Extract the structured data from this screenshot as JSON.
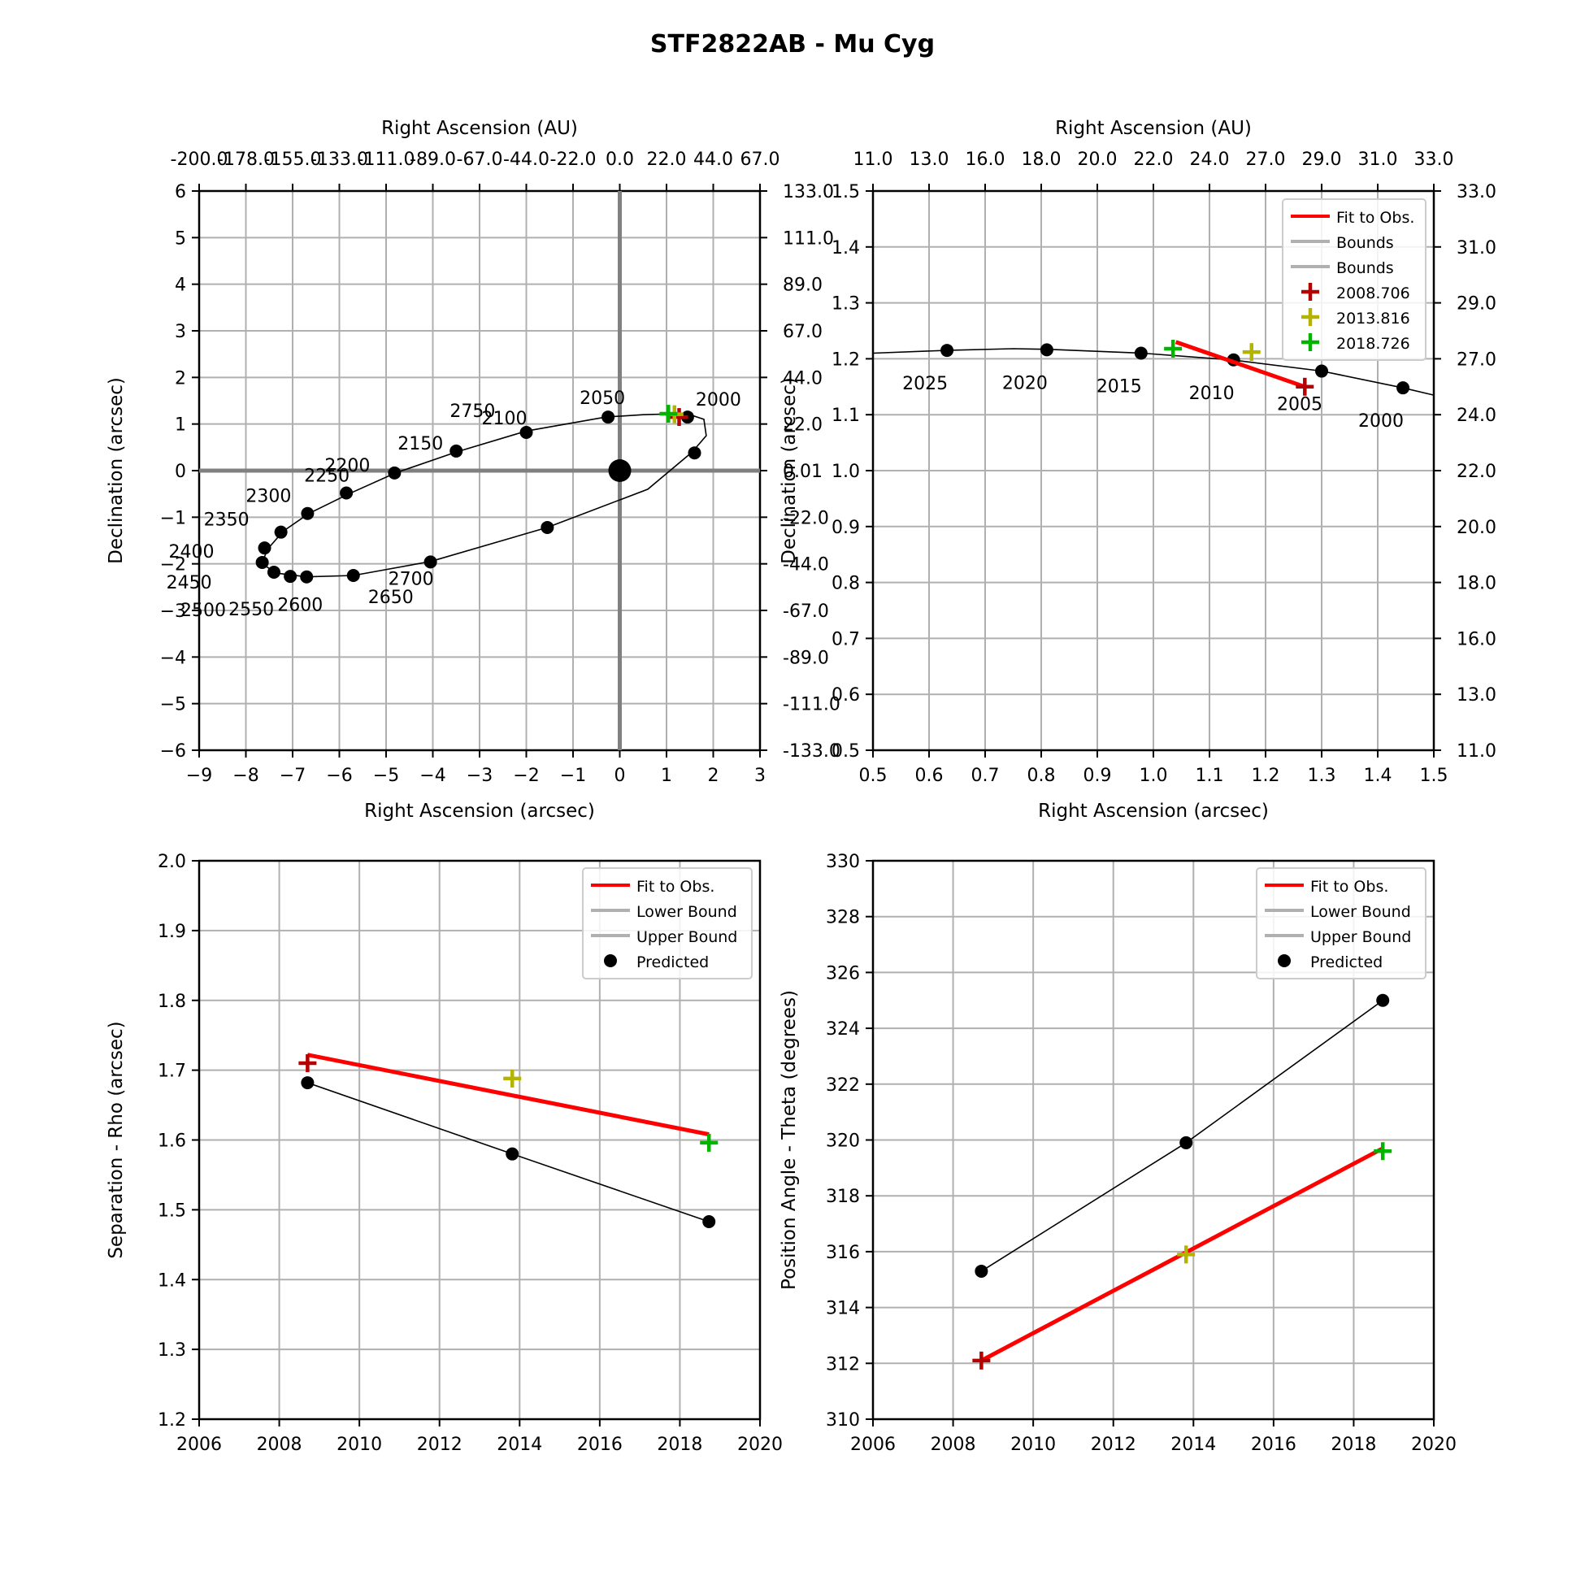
{
  "figure": {
    "title": "STF2822AB - Mu Cyg"
  },
  "colors": {
    "fit": "#ff0000",
    "bound": "#b0b0b0",
    "obs1": "#b40000",
    "obs2": "#b4b400",
    "obs3": "#00b400",
    "predicted": "#000000"
  },
  "chart_data": [
    {
      "id": "orbit-full",
      "type": "scatter",
      "xlabel": "Right Ascension (arcsec)",
      "ylabel": "Declination (arcsec)",
      "top_xlabel": "Right Ascension (AU)",
      "xlim": [
        -9,
        3
      ],
      "ylim": [
        -6,
        6
      ],
      "xticks": [
        "−9",
        "−8",
        "−7",
        "−6",
        "−5",
        "−4",
        "−3",
        "−2",
        "−1",
        "0",
        "1",
        "2",
        "3"
      ],
      "yticks": [
        "−6",
        "−5",
        "−4",
        "−3",
        "−2",
        "−1",
        "0",
        "1",
        "2",
        "3",
        "4",
        "5",
        "6"
      ],
      "top_ticks": [
        "-200.0",
        "-178.0",
        "-155.0",
        "-133.0",
        "-111.0",
        "-89.0",
        "-67.0",
        "-44.0",
        "-22.0",
        "0.0",
        "22.0",
        "44.0",
        "67.0"
      ],
      "right_ticks": [
        "-133.0",
        "-111.0",
        "-89.0",
        "-67.0",
        "-44.0",
        "-22.0",
        "0.01",
        "22.0",
        "44.0",
        "67.0",
        "89.0",
        "111.0",
        "133.0"
      ],
      "orbit_points": [
        [
          1.55,
          0.4
        ],
        [
          1.85,
          0.75
        ],
        [
          1.8,
          1.1
        ],
        [
          1.5,
          1.2
        ],
        [
          1.2,
          1.22
        ],
        [
          0.5,
          1.2
        ],
        [
          -0.3,
          1.15
        ],
        [
          -2.0,
          0.85
        ],
        [
          -3.5,
          0.4
        ],
        [
          -4.8,
          -0.05
        ],
        [
          -5.8,
          -0.5
        ],
        [
          -6.65,
          -0.92
        ],
        [
          -7.2,
          -1.3
        ],
        [
          -7.55,
          -1.7
        ],
        [
          -7.65,
          -2.0
        ],
        [
          -7.35,
          -2.2
        ],
        [
          -6.7,
          -2.28
        ],
        [
          -5.7,
          -2.25
        ],
        [
          -4.05,
          -1.95
        ],
        [
          -1.55,
          -1.22
        ],
        [
          0.6,
          -0.4
        ],
        [
          1.55,
          0.4
        ]
      ],
      "epoch_points": [
        {
          "label": "2000",
          "x": 1.45,
          "y": 1.15
        },
        {
          "label": "2050",
          "x": -0.25,
          "y": 1.15
        },
        {
          "label": "2100",
          "x": -2.0,
          "y": 0.82
        },
        {
          "label": "2150",
          "x": -3.5,
          "y": 0.42
        },
        {
          "label": "2200",
          "x": -4.82,
          "y": -0.05
        },
        {
          "label": "2250",
          "x": -5.85,
          "y": -0.48
        },
        {
          "label": "2300",
          "x": -6.68,
          "y": -0.92
        },
        {
          "label": "2350",
          "x": -7.25,
          "y": -1.32
        },
        {
          "label": "2400",
          "x": -7.6,
          "y": -1.66
        },
        {
          "label": "2450",
          "x": -7.65,
          "y": -1.97
        },
        {
          "label": "2500",
          "x": -7.4,
          "y": -2.18
        },
        {
          "label": "2550",
          "x": -7.05,
          "y": -2.27
        },
        {
          "label": "2600",
          "x": -6.7,
          "y": -2.28
        },
        {
          "label": "2650",
          "x": -5.7,
          "y": -2.25
        },
        {
          "label": "2700",
          "x": -4.05,
          "y": -1.96
        },
        {
          "label": "2750",
          "x": -1.55,
          "y": -1.22
        }
      ],
      "extra_point": {
        "x": 1.6,
        "y": 0.38
      },
      "primary_star": {
        "x": 0,
        "y": 0
      },
      "observations": [
        {
          "x": 1.27,
          "y": 1.15
        },
        {
          "x": 1.17,
          "y": 1.21
        },
        {
          "x": 1.04,
          "y": 1.22
        }
      ]
    },
    {
      "id": "orbit-zoom",
      "type": "scatter",
      "xlabel": "Right Ascension (arcsec)",
      "ylabel": "Declination (arcsec)",
      "top_xlabel": "Right Ascension (AU)",
      "xlim": [
        0.5,
        1.5
      ],
      "ylim": [
        0.5,
        1.5
      ],
      "xticks": [
        "0.5",
        "0.6",
        "0.7",
        "0.8",
        "0.9",
        "1.0",
        "1.1",
        "1.2",
        "1.3",
        "1.4",
        "1.5"
      ],
      "yticks": [
        "0.5",
        "0.6",
        "0.7",
        "0.8",
        "0.9",
        "1.0",
        "1.1",
        "1.2",
        "1.3",
        "1.4",
        "1.5"
      ],
      "top_ticks": [
        "11.0",
        "13.0",
        "16.0",
        "18.0",
        "20.0",
        "22.0",
        "24.0",
        "27.0",
        "29.0",
        "31.0",
        "33.0"
      ],
      "right_ticks": [
        "11.0",
        "13.0",
        "16.0",
        "18.0",
        "20.0",
        "22.0",
        "24.0",
        "27.0",
        "29.0",
        "31.0",
        "33.0"
      ],
      "orbit_points": [
        [
          0.5,
          1.21
        ],
        [
          0.63,
          1.215
        ],
        [
          0.75,
          1.218
        ],
        [
          0.81,
          1.217
        ],
        [
          0.98,
          1.21
        ],
        [
          1.14,
          1.198
        ],
        [
          1.3,
          1.178
        ],
        [
          1.445,
          1.148
        ],
        [
          1.5,
          1.135
        ]
      ],
      "epoch_points": [
        {
          "label": "2025",
          "x": 0.632,
          "y": 1.215
        },
        {
          "label": "2020",
          "x": 0.81,
          "y": 1.216
        },
        {
          "label": "2015",
          "x": 0.978,
          "y": 1.21
        },
        {
          "label": "2010",
          "x": 1.143,
          "y": 1.198
        },
        {
          "label": "2005",
          "x": 1.3,
          "y": 1.178
        },
        {
          "label": "2000",
          "x": 1.445,
          "y": 1.148
        }
      ],
      "fit_line": [
        [
          1.04,
          1.23
        ],
        [
          1.27,
          1.15
        ]
      ],
      "observations": [
        {
          "x": 1.27,
          "y": 1.15
        },
        {
          "x": 1.175,
          "y": 1.212
        },
        {
          "x": 1.035,
          "y": 1.218
        }
      ],
      "legend": [
        "Fit to Obs.",
        "Bounds",
        "Bounds",
        "2008.706",
        "2013.816",
        "2018.726"
      ]
    },
    {
      "id": "separation",
      "type": "line",
      "xlabel": "",
      "ylabel": "Separation - Rho (arcsec)",
      "xlim": [
        2006,
        2020
      ],
      "ylim": [
        1.2,
        2.0
      ],
      "xticks": [
        "2006",
        "2008",
        "2010",
        "2012",
        "2014",
        "2016",
        "2018",
        "2020"
      ],
      "yticks": [
        "1.2",
        "1.3",
        "1.4",
        "1.5",
        "1.6",
        "1.7",
        "1.8",
        "1.9",
        "2.0"
      ],
      "predicted": [
        {
          "x": 2008.706,
          "y": 1.682
        },
        {
          "x": 2013.816,
          "y": 1.58
        },
        {
          "x": 2018.726,
          "y": 1.483
        }
      ],
      "fit": [
        {
          "x": 2008.706,
          "y": 1.722
        },
        {
          "x": 2018.726,
          "y": 1.608
        }
      ],
      "observations": [
        {
          "x": 2008.706,
          "y": 1.71
        },
        {
          "x": 2013.816,
          "y": 1.688
        },
        {
          "x": 2018.726,
          "y": 1.596
        }
      ],
      "legend": [
        "Fit to Obs.",
        "Lower Bound",
        "Upper Bound",
        "Predicted"
      ]
    },
    {
      "id": "position-angle",
      "type": "line",
      "xlabel": "",
      "ylabel": "Position Angle - Theta (degrees)",
      "xlim": [
        2006,
        2020
      ],
      "ylim": [
        310,
        330
      ],
      "xticks": [
        "2006",
        "2008",
        "2010",
        "2012",
        "2014",
        "2016",
        "2018",
        "2020"
      ],
      "yticks": [
        "310",
        "312",
        "314",
        "316",
        "318",
        "320",
        "322",
        "324",
        "326",
        "328",
        "330"
      ],
      "predicted": [
        {
          "x": 2008.706,
          "y": 315.3
        },
        {
          "x": 2013.816,
          "y": 319.9
        },
        {
          "x": 2018.726,
          "y": 325.0
        }
      ],
      "fit": [
        {
          "x": 2008.706,
          "y": 312.1
        },
        {
          "x": 2018.726,
          "y": 319.7
        }
      ],
      "observations": [
        {
          "x": 2008.706,
          "y": 312.1
        },
        {
          "x": 2013.816,
          "y": 315.9
        },
        {
          "x": 2018.726,
          "y": 319.6
        }
      ],
      "legend": [
        "Fit to Obs.",
        "Lower Bound",
        "Upper Bound",
        "Predicted"
      ]
    }
  ]
}
